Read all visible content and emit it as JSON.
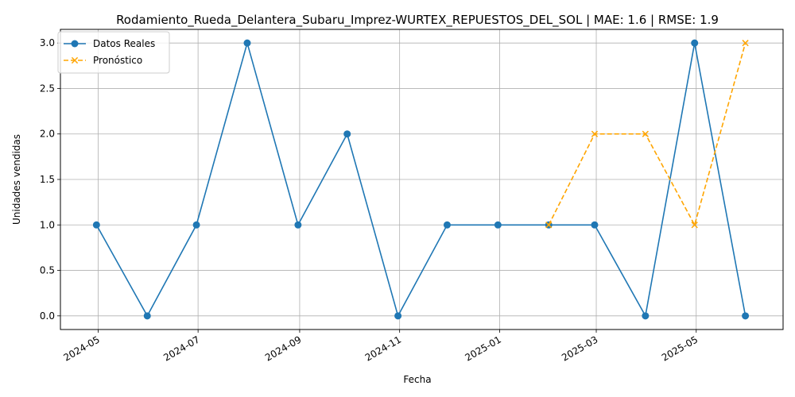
{
  "chart_data": {
    "type": "line",
    "title": "Rodamiento_Rueda_Delantera_Subaru_Imprez-WURTEX_REPUESTOS_DEL_SOL | MAE: 1.6 | RMSE: 1.9",
    "xlabel": "Fecha",
    "ylabel": "Unidades vendidas",
    "x_ticks": [
      "2024-05",
      "2024-07",
      "2024-09",
      "2024-11",
      "2025-01",
      "2025-03",
      "2025-05"
    ],
    "y_ticks": [
      "0.0",
      "0.5",
      "1.0",
      "1.5",
      "2.0",
      "2.5",
      "3.0"
    ],
    "ylim": [
      -0.15,
      3.15
    ],
    "xlim": [
      "2024-04-08",
      "2025-06-23"
    ],
    "grid": true,
    "legend_position": "top-left",
    "series": [
      {
        "name": "Datos Reales",
        "color": "#1f77b4",
        "style": "solid",
        "marker": "circle",
        "x": [
          "2024-04-30",
          "2024-05-31",
          "2024-06-30",
          "2024-07-31",
          "2024-08-31",
          "2024-09-30",
          "2024-10-31",
          "2024-11-30",
          "2024-12-31",
          "2025-01-31",
          "2025-02-28",
          "2025-03-31",
          "2025-04-30",
          "2025-05-31"
        ],
        "values": [
          1,
          0,
          1,
          3,
          1,
          2,
          0,
          1,
          1,
          1,
          1,
          0,
          3,
          0
        ]
      },
      {
        "name": "Pronóstico",
        "color": "#ffa500",
        "style": "dashed",
        "marker": "x",
        "x": [
          "2025-01-31",
          "2025-02-28",
          "2025-03-31",
          "2025-04-30",
          "2025-05-31"
        ],
        "values": [
          1,
          2,
          2,
          1,
          3
        ]
      }
    ]
  }
}
